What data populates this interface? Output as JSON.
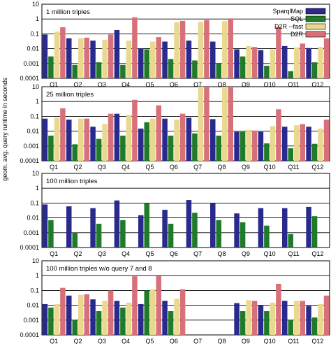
{
  "figure": {
    "ylabel": "geom. avg. query runtime in seconds"
  },
  "legend": {
    "placement": "top-right",
    "entries": [
      {
        "name": "SparqlMap",
        "color": "#2a2a8c"
      },
      {
        "name": "SQL",
        "color": "#1f7a2a"
      },
      {
        "name": "D2R --fast",
        "color": "#e8d890"
      },
      {
        "name": "D2R",
        "color": "#d8707a"
      }
    ]
  },
  "chart_data": [
    {
      "type": "bar",
      "title": "1 million triples",
      "scale": "log",
      "ylim": [
        0.0001,
        10
      ],
      "yticks": [
        "0.0001",
        "0.001",
        "0.01",
        "0.1",
        "1",
        "10"
      ],
      "grid": true,
      "categories": [
        "Q1",
        "Q2",
        "Q3",
        "Q4",
        "Q5",
        "Q6",
        "Q7",
        "Q8",
        "Q9",
        "Q10",
        "Q11",
        "Q12"
      ],
      "series": [
        {
          "name": "SparqlMap",
          "values": [
            0.09,
            0.05,
            0.035,
            0.18,
            0.01,
            0.03,
            0.035,
            0.03,
            0.009,
            0.008,
            0.015,
            0.011
          ]
        },
        {
          "name": "SQL",
          "values": [
            0.003,
            0.0008,
            0.0012,
            0.0008,
            0.009,
            0.002,
            0.0016,
            0.0011,
            0.003,
            0.0007,
            0.0003,
            0.0012
          ]
        },
        {
          "name": "D2R --fast",
          "values": [
            0.14,
            0.05,
            0.04,
            0.035,
            0.03,
            0.6,
            0.65,
            0.7,
            0.015,
            0.009,
            0.012,
            0.013
          ]
        },
        {
          "name": "D2R",
          "values": [
            0.28,
            0.055,
            0.09,
            1.3,
            0.06,
            0.75,
            0.85,
            1.1,
            0.013,
            0.3,
            0.022,
            0.05
          ]
        }
      ]
    },
    {
      "type": "bar",
      "title": "25 million triples",
      "scale": "log",
      "ylim": [
        0.0001,
        10
      ],
      "yticks": [
        "0.0001",
        "0.001",
        "0.01",
        "0.1",
        "1",
        "10"
      ],
      "grid": true,
      "categories": [
        "Q1",
        "Q2",
        "Q3",
        "Q4",
        "Q5",
        "Q6",
        "Q7",
        "Q8",
        "Q9",
        "Q10",
        "Q11",
        "Q12"
      ],
      "series": [
        {
          "name": "SparqlMap",
          "values": [
            0.07,
            0.06,
            0.02,
            0.15,
            0.015,
            0.07,
            0.08,
            0.065,
            0.009,
            0.009,
            0.02,
            0.02
          ]
        },
        {
          "name": "SQL",
          "values": [
            0.005,
            0.0013,
            0.003,
            0.005,
            0.04,
            0.005,
            0.007,
            0.005,
            0.009,
            0.0015,
            0.0007,
            0.0014
          ]
        },
        {
          "name": "D2R --fast",
          "values": [
            0.08,
            0.07,
            0.03,
            0.13,
            0.07,
            0.06,
            10,
            10,
            0.012,
            0.022,
            0.025,
            0.015
          ]
        },
        {
          "name": "D2R",
          "values": [
            0.35,
            0.07,
            0.15,
            1.3,
            0.55,
            0.15,
            10,
            10,
            0.011,
            0.3,
            0.03,
            0.06
          ]
        }
      ]
    },
    {
      "type": "bar",
      "title": "100 million triples",
      "scale": "log",
      "ylim": [
        0.0001,
        10
      ],
      "yticks": [
        "0.0001",
        "0.001",
        "0.01",
        "0.1",
        "1",
        "10"
      ],
      "grid": true,
      "categories": [
        "Q1",
        "Q2",
        "Q3",
        "Q4",
        "Q5",
        "Q6",
        "Q7",
        "Q8",
        "Q9",
        "Q10",
        "Q11",
        "Q12"
      ],
      "series": [
        {
          "name": "SparqlMap",
          "values": [
            0.08,
            0.06,
            0.045,
            0.15,
            0.015,
            0.035,
            0.16,
            0.1,
            0.02,
            0.045,
            0.045,
            0.055
          ]
        },
        {
          "name": "SQL",
          "values": [
            0.007,
            0.001,
            0.004,
            0.007,
            0.1,
            0.004,
            0.022,
            0.007,
            0.005,
            0.003,
            0.0008,
            0.013
          ]
        },
        {
          "name": "D2R --fast",
          "values": [
            null,
            null,
            null,
            null,
            null,
            null,
            null,
            null,
            null,
            null,
            null,
            null
          ]
        },
        {
          "name": "D2R",
          "values": [
            null,
            null,
            null,
            null,
            null,
            null,
            null,
            null,
            null,
            null,
            null,
            null
          ]
        }
      ]
    },
    {
      "type": "bar",
      "title": "100 million triples w/o query 7 and 8",
      "scale": "log",
      "ylim": [
        0.0001,
        10
      ],
      "yticks": [
        "0.0001",
        "0.001",
        "0.01",
        "0.1",
        "1",
        "10"
      ],
      "grid": true,
      "categories": [
        "Q1",
        "Q2",
        "Q3",
        "Q4",
        "Q5",
        "Q6",
        "Q7",
        "Q8",
        "Q9",
        "Q10",
        "Q11",
        "Q12"
      ],
      "series": [
        {
          "name": "SparqlMap",
          "values": [
            0.012,
            0.045,
            0.025,
            0.02,
            0.012,
            0.02,
            null,
            null,
            0.014,
            0.01,
            0.02,
            0.009
          ]
        },
        {
          "name": "SQL",
          "values": [
            0.007,
            0.001,
            0.004,
            0.007,
            0.1,
            0.004,
            null,
            null,
            0.004,
            0.004,
            0.001,
            0.0015
          ]
        },
        {
          "name": "D2R --fast",
          "values": [
            0.012,
            0.05,
            0.02,
            0.015,
            0.12,
            0.028,
            null,
            null,
            0.022,
            0.015,
            0.02,
            0.012
          ]
        },
        {
          "name": "D2R",
          "values": [
            0.15,
            0.055,
            0.1,
            0.9,
            0.95,
            0.12,
            null,
            null,
            0.02,
            0.28,
            0.02,
            0.045
          ]
        }
      ]
    }
  ]
}
